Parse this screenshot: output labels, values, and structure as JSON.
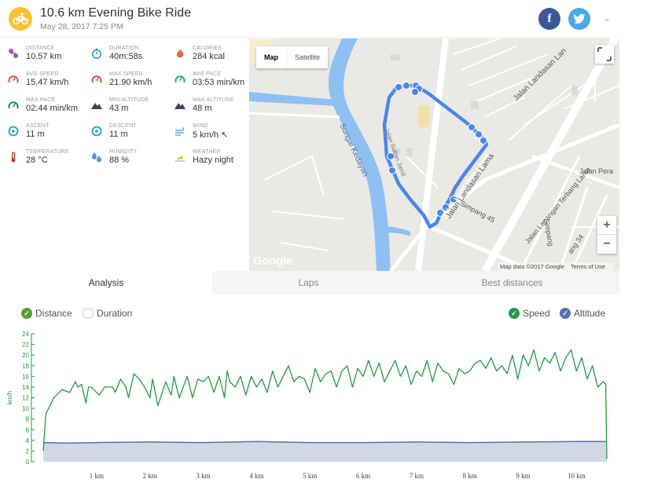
{
  "header": {
    "title": "10.6 km Evening Bike Ride",
    "subtitle": "May 28, 2017 7:25 PM",
    "facebook_glyph": "f",
    "twitter_glyph": "🐦",
    "chevron": "⌄"
  },
  "stats": [
    {
      "label": "DISTANCE",
      "value": "10.57 km",
      "icon": "distance-icon",
      "color": "#9b59b6"
    },
    {
      "label": "DURATION",
      "value": "40m:58s",
      "icon": "duration-icon",
      "color": "#3498db"
    },
    {
      "label": "CALORIES",
      "value": "284 kcal",
      "icon": "calories-icon",
      "color": "#e8663d"
    },
    {
      "label": "AVG SPEED",
      "value": "15.47 km/h",
      "icon": "avg-speed-icon",
      "color": "#e74c3c"
    },
    {
      "label": "MAX SPEED",
      "value": "21.90 km/h",
      "icon": "max-speed-icon",
      "color": "#e74c3c"
    },
    {
      "label": "AVG PACE",
      "value": "03:53 min/km",
      "icon": "avg-pace-icon",
      "color": "#27ae60"
    },
    {
      "label": "MAX PACE",
      "value": "02:44 min/km",
      "icon": "max-pace-icon",
      "color": "#1e8c5a"
    },
    {
      "label": "MIN ALTITUDE",
      "value": "43 m",
      "icon": "min-altitude-icon",
      "color": "#34495e"
    },
    {
      "label": "MAX ALTITUDE",
      "value": "48 m",
      "icon": "max-altitude-icon",
      "color": "#34495e"
    },
    {
      "label": "ASCENT",
      "value": "11 m",
      "icon": "ascent-icon",
      "color": "#1aa3b8"
    },
    {
      "label": "DESCENT",
      "value": "11 m",
      "icon": "descent-icon",
      "color": "#1aa3b8"
    },
    {
      "label": "WIND",
      "value": "5 km/h ↖",
      "icon": "wind-icon",
      "color": "#5dade2"
    },
    {
      "label": "TEMPERATURE",
      "value": "28 °C",
      "icon": "temperature-icon",
      "color": "#c0392b"
    },
    {
      "label": "HUMIDITY",
      "value": "88 %",
      "icon": "humidity-icon",
      "color": "#5b8fd6"
    },
    {
      "label": "WEATHER",
      "value": "Hazy night",
      "icon": "weather-icon",
      "color": "#f1c40f"
    }
  ],
  "map": {
    "type_map": "Map",
    "type_satellite": "Satellite",
    "zoom_in": "+",
    "zoom_out": "−",
    "logo": "Google",
    "attribution": "Map data ©2017 Google",
    "terms": "Terms of Use",
    "streets": [
      {
        "name": "Jalan Landasan Lan",
        "id": "street-landasan-top"
      },
      {
        "name": "Sungai Kedayan",
        "id": "river-kedayan"
      },
      {
        "name": "Jalan Landasan Lama",
        "id": "street-landasan-lama"
      },
      {
        "name": "Jalan Lapangan Terbang Lama",
        "id": "street-lapangan"
      },
      {
        "name": "Jalan Pera",
        "id": "street-pera"
      },
      {
        "name": "Simpang 45",
        "id": "street-simpang45"
      },
      {
        "name": "Simpang 34",
        "id": "street-simpang34"
      },
      {
        "name": "Jalan Sultan Jamil",
        "id": "street-jamil"
      }
    ],
    "route_markers": [
      "4",
      "5",
      "6",
      "7",
      "8",
      "9",
      "10",
      "11",
      "2",
      "3",
      "1",
      "0"
    ]
  },
  "tabs": [
    {
      "label": "Analysis",
      "active": true
    },
    {
      "label": "Laps",
      "active": false
    },
    {
      "label": "Best distances",
      "active": false
    }
  ],
  "toggles": {
    "distance": "Distance",
    "duration": "Duration",
    "speed": "Speed",
    "altitude": "Altitude"
  },
  "colors": {
    "speed_line": "#1f9a47",
    "altitude_line": "#5a6eb5",
    "altitude_fill": "#d2d7e6",
    "route": "#4a87ec",
    "river": "#8ec0f3"
  },
  "chart_data": {
    "type": "line",
    "xlabel": "",
    "ylabel": "km/h",
    "x_ticks": [
      "1 km",
      "2 km",
      "3 km",
      "4 km",
      "5 km",
      "6 km",
      "7 km",
      "8 km",
      "9 km",
      "10 km"
    ],
    "y_ticks": [
      "0",
      "2",
      "4",
      "6",
      "8",
      "10",
      "12",
      "14",
      "16",
      "18",
      "20",
      "22",
      "24"
    ],
    "xlim": [
      0,
      10.57
    ],
    "ylim": [
      0,
      24
    ],
    "series": [
      {
        "name": "Speed",
        "x": [
          0,
          0.05,
          0.2,
          0.35,
          0.5,
          0.6,
          0.65,
          0.72,
          0.8,
          0.85,
          0.9,
          1.0,
          1.05,
          1.15,
          1.3,
          1.35,
          1.45,
          1.55,
          1.6,
          1.7,
          1.8,
          1.9,
          2.0,
          2.05,
          2.15,
          2.3,
          2.4,
          2.45,
          2.55,
          2.7,
          2.8,
          2.9,
          3.0,
          3.1,
          3.2,
          3.3,
          3.4,
          3.45,
          3.5,
          3.6,
          3.7,
          3.8,
          3.9,
          4.0,
          4.1,
          4.2,
          4.3,
          4.4,
          4.5,
          4.6,
          4.7,
          4.8,
          4.9,
          5.0,
          5.1,
          5.2,
          5.3,
          5.4,
          5.5,
          5.6,
          5.7,
          5.8,
          5.9,
          6.0,
          6.1,
          6.2,
          6.3,
          6.4,
          6.5,
          6.6,
          6.7,
          6.8,
          6.9,
          7.0,
          7.1,
          7.2,
          7.3,
          7.4,
          7.5,
          7.6,
          7.7,
          7.8,
          7.9,
          8.0,
          8.1,
          8.2,
          8.3,
          8.4,
          8.5,
          8.6,
          8.7,
          8.8,
          8.9,
          9.0,
          9.1,
          9.2,
          9.3,
          9.4,
          9.5,
          9.6,
          9.7,
          9.8,
          9.9,
          10.0,
          10.1,
          10.2,
          10.3,
          10.4,
          10.5,
          10.55,
          10.57
        ],
        "values": [
          2,
          9,
          12,
          13.5,
          13,
          15,
          14,
          14.5,
          11,
          14,
          14,
          13,
          12.5,
          14,
          14,
          13,
          15.5,
          14,
          12,
          16.5,
          15.5,
          14,
          12,
          15.5,
          10.5,
          15,
          12.5,
          16,
          12,
          16,
          12,
          15.5,
          15,
          16,
          13,
          16,
          12,
          17,
          15,
          14,
          16,
          12.5,
          16,
          14,
          15.5,
          13,
          17,
          14,
          16,
          18,
          15,
          16,
          15.5,
          13,
          17.5,
          15,
          16.5,
          17,
          14,
          17,
          18,
          14,
          17.5,
          16,
          19,
          16,
          18.5,
          15,
          17,
          19,
          16,
          18,
          14.5,
          17,
          16,
          19,
          15,
          18.5,
          17,
          16.5,
          14.5,
          17.5,
          16.5,
          17,
          18.5,
          19,
          17.5,
          19.5,
          17,
          18,
          16.5,
          20,
          15.5,
          20,
          18,
          21,
          17,
          19.5,
          18.5,
          20.5,
          17,
          19.5,
          21,
          17,
          19.5,
          15.5,
          18,
          14,
          15,
          14.5,
          0.5
        ]
      },
      {
        "name": "Altitude",
        "x": [
          0,
          0.5,
          1.0,
          2.0,
          3.0,
          4.0,
          5.0,
          6.0,
          7.0,
          8.0,
          9.0,
          10.0,
          10.57
        ],
        "values": [
          3.6,
          3.5,
          3.6,
          3.7,
          3.6,
          3.8,
          3.6,
          3.6,
          3.7,
          3.6,
          3.7,
          3.8,
          3.8
        ]
      }
    ],
    "legend": "top-right",
    "grid": false
  }
}
